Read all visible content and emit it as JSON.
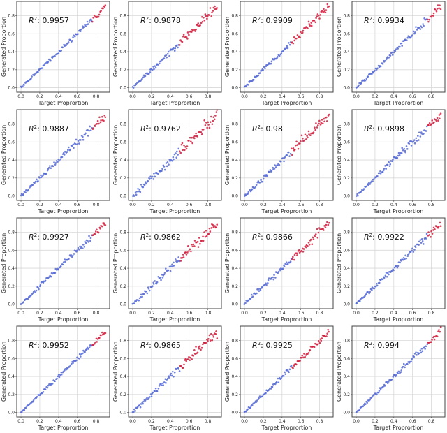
{
  "chart_data": [
    {
      "type": "scatter",
      "r2": "0.9957",
      "highlight_threshold": 0.76,
      "noise": 0.012,
      "seed": 1
    },
    {
      "type": "scatter",
      "r2": "0.9878",
      "highlight_threshold": 0.5,
      "noise": 0.022,
      "seed": 2
    },
    {
      "type": "scatter",
      "r2": "0.9909",
      "highlight_threshold": 0.5,
      "noise": 0.018,
      "seed": 3
    },
    {
      "type": "scatter",
      "r2": "0.9934",
      "highlight_threshold": 0.76,
      "noise": 0.016,
      "seed": 4
    },
    {
      "type": "scatter",
      "r2": "0.9887",
      "highlight_threshold": 0.76,
      "noise": 0.02,
      "seed": 5
    },
    {
      "type": "scatter",
      "r2": "0.9762",
      "highlight_threshold": 0.5,
      "noise": 0.028,
      "seed": 6
    },
    {
      "type": "scatter",
      "r2": "0.98",
      "highlight_threshold": 0.5,
      "noise": 0.025,
      "seed": 7
    },
    {
      "type": "scatter",
      "r2": "0.9898",
      "highlight_threshold": 0.76,
      "noise": 0.02,
      "seed": 8
    },
    {
      "type": "scatter",
      "r2": "0.9927",
      "highlight_threshold": 0.76,
      "noise": 0.017,
      "seed": 9
    },
    {
      "type": "scatter",
      "r2": "0.9862",
      "highlight_threshold": 0.5,
      "noise": 0.023,
      "seed": 10
    },
    {
      "type": "scatter",
      "r2": "0.9866",
      "highlight_threshold": 0.5,
      "noise": 0.022,
      "seed": 11
    },
    {
      "type": "scatter",
      "r2": "0.9922",
      "highlight_threshold": 0.76,
      "noise": 0.017,
      "seed": 12
    },
    {
      "type": "scatter",
      "r2": "0.9952",
      "highlight_threshold": 0.76,
      "noise": 0.013,
      "seed": 13
    },
    {
      "type": "scatter",
      "r2": "0.9865",
      "highlight_threshold": 0.5,
      "noise": 0.023,
      "seed": 14
    },
    {
      "type": "scatter",
      "r2": "0.9925",
      "highlight_threshold": 0.5,
      "noise": 0.017,
      "seed": 15
    },
    {
      "type": "scatter",
      "r2": "0.994",
      "highlight_threshold": 0.76,
      "noise": 0.015,
      "seed": 16
    }
  ],
  "shared": {
    "r2_label": "R",
    "r2_sup": "2",
    "r2_sep": ": ",
    "xlabel": "Target Proprortion",
    "ylabel": "Generated Proportion",
    "xticks": [
      "0.0",
      "0.2",
      "0.4",
      "0.6",
      "0.8"
    ],
    "yticks": [
      "0.0",
      "0.2",
      "0.4",
      "0.6",
      "0.8"
    ],
    "tick_values": [
      0,
      0.2,
      0.4,
      0.6,
      0.8
    ],
    "xlim": [
      -0.045,
      0.945
    ],
    "ylim": [
      -0.05,
      0.96
    ],
    "n_points": 100,
    "x_range": [
      0,
      0.9
    ],
    "grid": true,
    "colors": {
      "below": "#5468d4",
      "above": "#d01c3c",
      "grid": "#d9d9d9",
      "frame": "#444444"
    }
  }
}
